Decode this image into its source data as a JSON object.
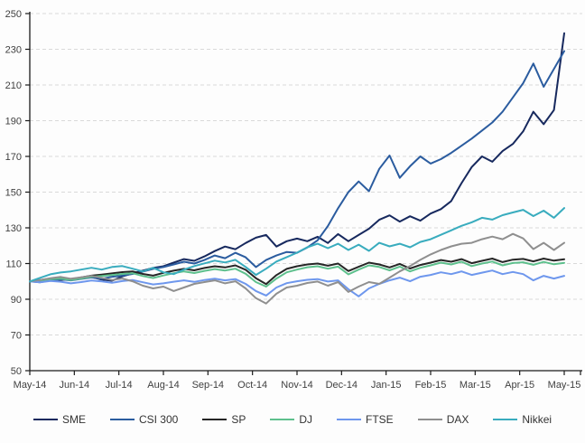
{
  "chart_data": {
    "type": "line",
    "title": "",
    "xlabel": "",
    "ylabel": "",
    "ylim": [
      50,
      250
    ],
    "y_ticks": [
      50,
      70,
      90,
      110,
      130,
      150,
      170,
      190,
      210,
      230,
      250
    ],
    "x_ticks": [
      "May-14",
      "Jun-14",
      "Jul-14",
      "Aug-14",
      "Sep-14",
      "Oct-14",
      "Nov-14",
      "Dec-14",
      "Jan-15",
      "Feb-15",
      "Mar-15",
      "Apr-15",
      "May-15"
    ],
    "x_unit": "weekly points (53) spanning May-14 to May-15, all series indexed to 100",
    "grid": "horizontal-dashed",
    "legend_position": "bottom",
    "axis_color": "#1a1a1a",
    "grid_color": "#d9d9d9",
    "series": [
      {
        "name": "SME",
        "color": "#17295e",
        "values": [
          100,
          100.5,
          101.5,
          100.8,
          101.2,
          101.8,
          102.5,
          101,
          100.4,
          102.8,
          104.5,
          106,
          107.5,
          108.5,
          110.5,
          112.5,
          111.5,
          114,
          117,
          119.5,
          118,
          121.5,
          124.5,
          126,
          119.5,
          122.5,
          124,
          122.5,
          125,
          121.5,
          126.5,
          122.5,
          126,
          129.5,
          134.5,
          137,
          133.5,
          136.5,
          134,
          138,
          140.5,
          145,
          155,
          164,
          170,
          167,
          173,
          177,
          184,
          195,
          188,
          196,
          239
        ]
      },
      {
        "name": "CSI 300",
        "color": "#2b5c9f",
        "values": [
          100,
          99.5,
          100.5,
          101.2,
          100.6,
          101.4,
          102.2,
          101.5,
          102.6,
          103.2,
          104.2,
          105.5,
          107,
          108,
          109.5,
          111,
          110,
          112,
          114.5,
          113,
          116,
          113.5,
          108,
          112,
          114.5,
          116.5,
          116,
          119,
          123,
          131,
          141,
          150,
          156,
          150.5,
          163,
          170.5,
          158,
          164.5,
          170,
          166,
          168.5,
          172,
          176,
          180,
          184.5,
          189,
          195,
          203,
          211,
          222,
          209,
          219,
          229
        ]
      },
      {
        "name": "SP",
        "color": "#262626",
        "values": [
          100,
          100.8,
          101.5,
          102,
          101.2,
          102.2,
          103.2,
          103.8,
          104.5,
          105.2,
          105.6,
          104.2,
          103.2,
          104.8,
          106,
          107,
          106.2,
          107.5,
          108.5,
          107.8,
          109,
          106.5,
          101.8,
          98.5,
          103.5,
          107,
          108.5,
          109.5,
          110,
          108.8,
          110,
          105.8,
          108.2,
          110.5,
          109.5,
          107.8,
          109.8,
          107.2,
          109.2,
          110.5,
          112,
          111,
          112.5,
          110.2,
          111.5,
          112.8,
          110.8,
          112.2,
          112.6,
          111.2,
          112.8,
          111.6,
          112.4
        ]
      },
      {
        "name": "DJ",
        "color": "#5ec08d",
        "values": [
          100,
          100.5,
          101.2,
          101.6,
          100.8,
          101.6,
          102.6,
          103,
          103.6,
          104.2,
          104.6,
          103,
          101.9,
          103.3,
          104.6,
          105.6,
          104.7,
          105.9,
          106.9,
          106.1,
          107.1,
          104.3,
          99.6,
          97.1,
          101.6,
          105.1,
          106.6,
          107.9,
          108.5,
          107.1,
          108.3,
          103.9,
          106.6,
          109,
          108.1,
          106.2,
          108.3,
          105.6,
          107.6,
          109,
          110.5,
          109.5,
          111,
          108.6,
          110,
          111.1,
          109,
          110.3,
          110.7,
          109.3,
          110.9,
          109.6,
          110.4
        ]
      },
      {
        "name": "FTSE",
        "color": "#6e97ed",
        "values": [
          100,
          99.5,
          100.3,
          99.8,
          98.9,
          99.6,
          100.5,
          100,
          99.2,
          100.2,
          100.8,
          99.5,
          98.3,
          98.9,
          99.8,
          100.6,
          99.7,
          100.8,
          101.5,
          100.6,
          101.3,
          98.6,
          94.6,
          92.1,
          96.6,
          99,
          100.1,
          100.9,
          101.3,
          99.9,
          100.6,
          95.6,
          91.6,
          96.1,
          98.6,
          100.6,
          102.1,
          100.1,
          102.6,
          103.6,
          105.1,
          104.1,
          105.6,
          103.6,
          104.9,
          106.1,
          104.1,
          105.3,
          104.1,
          100.6,
          103.1,
          101.6,
          103.1
        ]
      },
      {
        "name": "DAX",
        "color": "#8f8f8f",
        "values": [
          100,
          100.8,
          101.8,
          102.5,
          101.5,
          102.3,
          103.1,
          102,
          100.8,
          101.6,
          100.1,
          97.6,
          96.1,
          97.1,
          94.6,
          96.6,
          98.6,
          99.6,
          100.6,
          98.9,
          100.1,
          96.1,
          90.6,
          87.6,
          93.1,
          96.6,
          97.6,
          99.1,
          99.9,
          97.6,
          99.6,
          94.1,
          97.1,
          99.6,
          98.6,
          102.1,
          105.6,
          108.6,
          112.1,
          115.1,
          117.6,
          119.6,
          121.1,
          121.6,
          123.6,
          125.1,
          123.6,
          126.6,
          124.1,
          118.1,
          121.6,
          117.6,
          121.6
        ]
      },
      {
        "name": "Nikkei",
        "color": "#39acbe",
        "values": [
          100,
          102,
          104,
          105,
          105.6,
          106.6,
          107.6,
          106.6,
          108.1,
          108.6,
          107.1,
          105.6,
          107.6,
          105.1,
          104.1,
          106.6,
          108.6,
          110.1,
          111.6,
          110.6,
          112.1,
          108.1,
          103.6,
          107.1,
          111.1,
          113.6,
          116.1,
          119.1,
          121.1,
          118.6,
          121.1,
          117.6,
          120.6,
          117.1,
          121.6,
          119.6,
          121.1,
          119.1,
          122.1,
          123.6,
          126.1,
          128.6,
          131.1,
          133.1,
          135.6,
          134.6,
          137.1,
          138.6,
          140.1,
          136.6,
          139.6,
          135.6,
          141.1
        ]
      }
    ]
  }
}
